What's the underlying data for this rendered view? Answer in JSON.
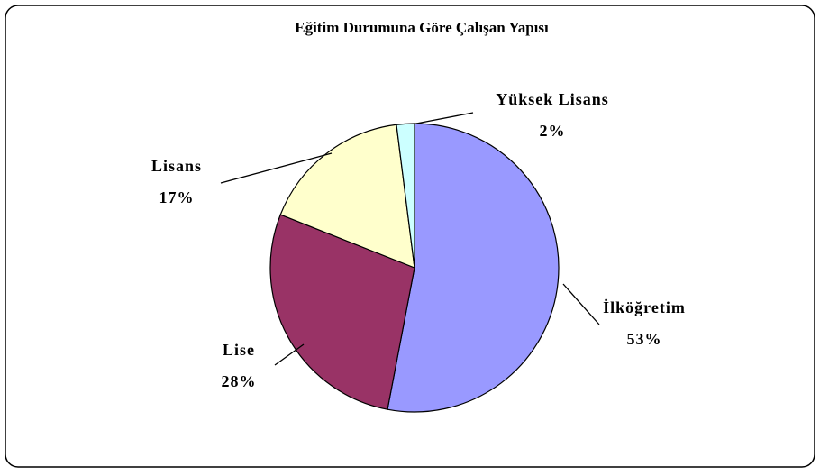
{
  "chart_data": {
    "type": "pie",
    "title": "Eğitim Durumuna Göre Çalışan Yapısı",
    "categories": [
      "İlköğretim",
      "Lise",
      "Lisans",
      "Yüksek Lisans"
    ],
    "values": [
      53,
      28,
      17,
      2
    ],
    "value_labels": [
      "53%",
      "28%",
      "17%",
      "2%"
    ],
    "colors": [
      "#9999ff",
      "#993366",
      "#ffffcc",
      "#ccffff"
    ]
  }
}
